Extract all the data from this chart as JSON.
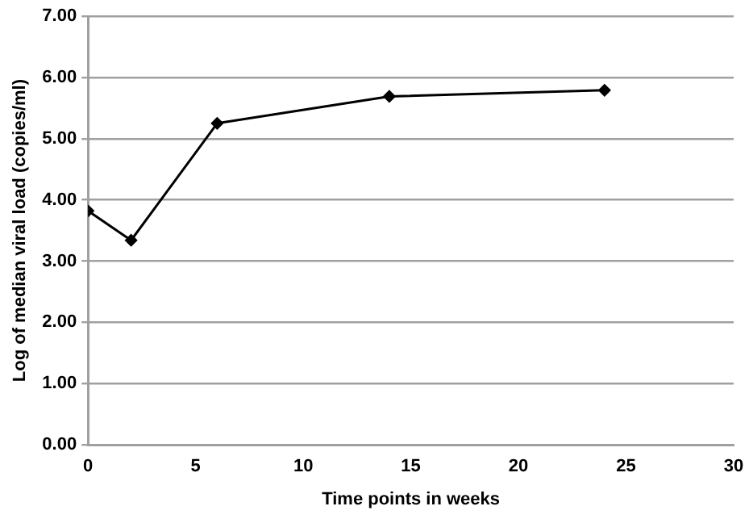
{
  "chart_data": {
    "type": "line",
    "xlabel": "Time points in weeks",
    "ylabel": "Log of median viral load (copies/ml)",
    "x": [
      0,
      2,
      6,
      14,
      24
    ],
    "series": [
      {
        "color": "#000000",
        "values": [
          3.82,
          3.34,
          5.25,
          5.69,
          5.79
        ]
      }
    ],
    "xlim": [
      0,
      30
    ],
    "xticks": [
      0,
      5,
      10,
      15,
      20,
      25,
      30
    ],
    "ylim": [
      0,
      7
    ],
    "yticks": [
      {
        "value": 0,
        "label": "0.00"
      },
      {
        "value": 1,
        "label": "1.00"
      },
      {
        "value": 2,
        "label": "2.00"
      },
      {
        "value": 3,
        "label": "3.00"
      },
      {
        "value": 4,
        "label": "4.00"
      },
      {
        "value": 5,
        "label": "5.00"
      },
      {
        "value": 6,
        "label": "6.00"
      },
      {
        "value": 7,
        "label": "7.00"
      }
    ],
    "grid": "y",
    "legend": false,
    "marker": "diamond",
    "line_style": "solid"
  }
}
